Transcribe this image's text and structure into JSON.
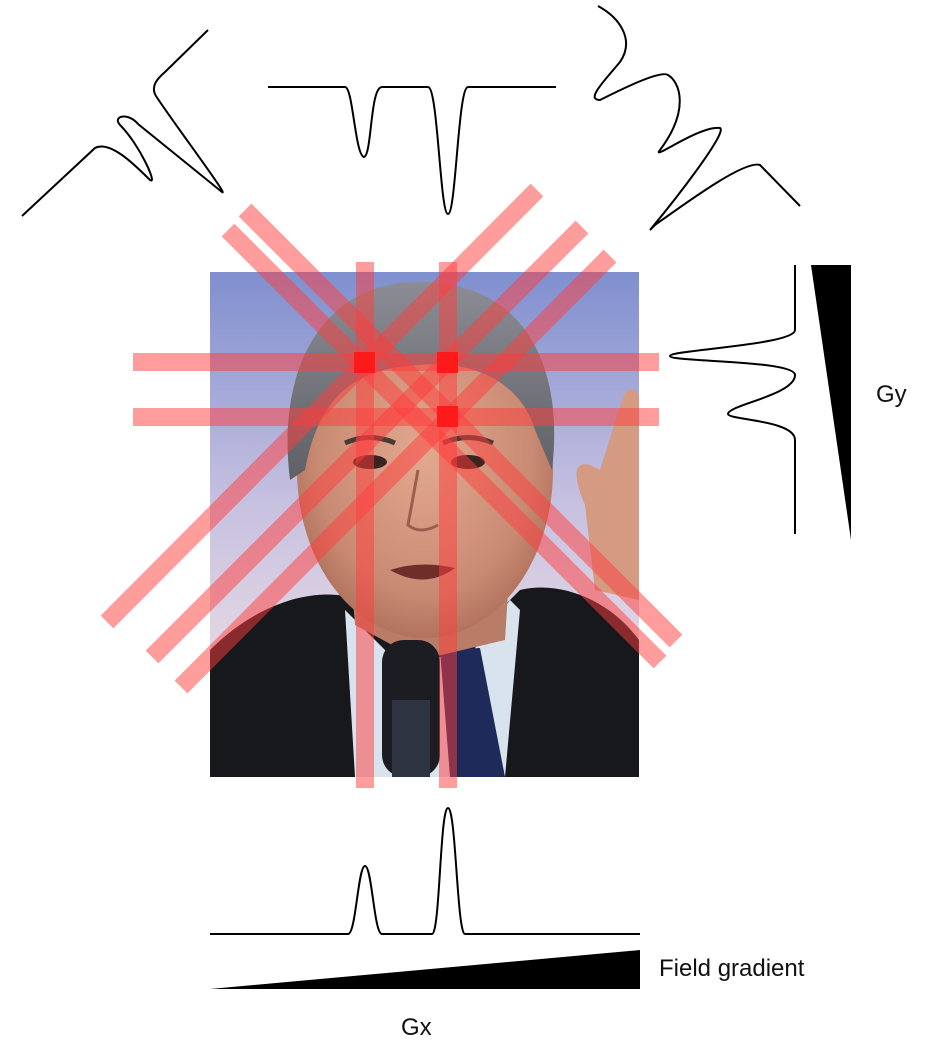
{
  "labels": {
    "gy": "Gy",
    "field_gradient": "Field gradient",
    "gx": "Gx"
  },
  "colors": {
    "background": "#ffffff",
    "line": "#000000",
    "beam": "#ff3b3b",
    "hotspot": "#ff1a1a"
  },
  "image": {
    "description_icon": "portrait-photo"
  }
}
